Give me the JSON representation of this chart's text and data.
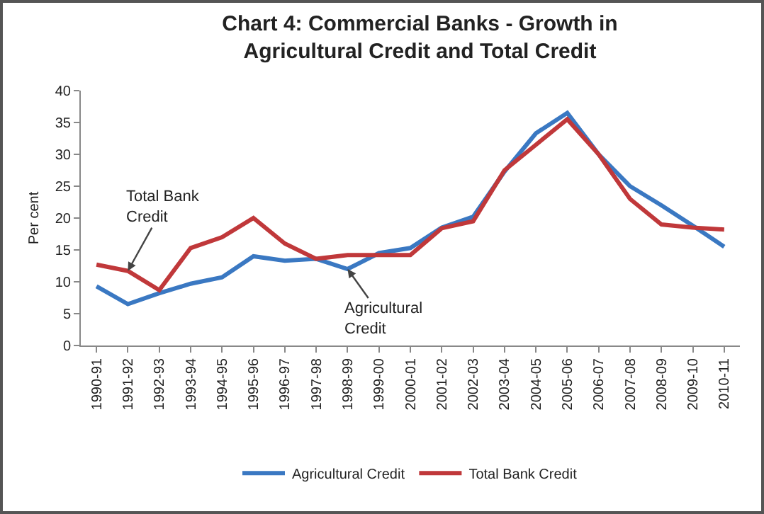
{
  "chart_data": {
    "type": "line",
    "title": "Chart 4: Commercial Banks - Growth in Agricultural Credit and Total Credit",
    "ylabel": "Per cent",
    "categories": [
      "1990-91",
      "1991-92",
      "1992-93",
      "1993-94",
      "1994-95",
      "1995-96",
      "1996-97",
      "1997-98",
      "1998-99",
      "1999-00",
      "2000-01",
      "2001-02",
      "2002-03",
      "2003-04",
      "2004-05",
      "2005-06",
      "2006-07",
      "2007-08",
      "2008-09",
      "2009-10",
      "2010-11"
    ],
    "series": [
      {
        "name": "Agricultural Credit",
        "color": "#3a78c2",
        "values": [
          9.3,
          6.5,
          8.2,
          9.7,
          10.7,
          14,
          13.3,
          13.6,
          12,
          14.5,
          15.3,
          18.5,
          20.2,
          27.3,
          33.3,
          36.5,
          30,
          25,
          22,
          18.8,
          15.5
        ]
      },
      {
        "name": "Total Bank Credit",
        "color": "#c0383a",
        "values": [
          12.7,
          11.7,
          8.7,
          15.3,
          17,
          20,
          16,
          13.6,
          14.2,
          14.2,
          14.2,
          18.4,
          19.5,
          27.5,
          31.5,
          35.5,
          30,
          23,
          19,
          18.5,
          18.2
        ]
      }
    ],
    "annotations": [
      {
        "text": "Total Bank Credit",
        "x": "1991-92",
        "y": 11.7
      },
      {
        "text": "Agricultural Credit",
        "x": "1998-99",
        "y": 12
      }
    ],
    "ylim": [
      0,
      40
    ],
    "yticks": [
      0,
      5,
      10,
      15,
      20,
      25,
      30,
      35,
      40
    ],
    "grid": false,
    "legend": "bottom"
  }
}
